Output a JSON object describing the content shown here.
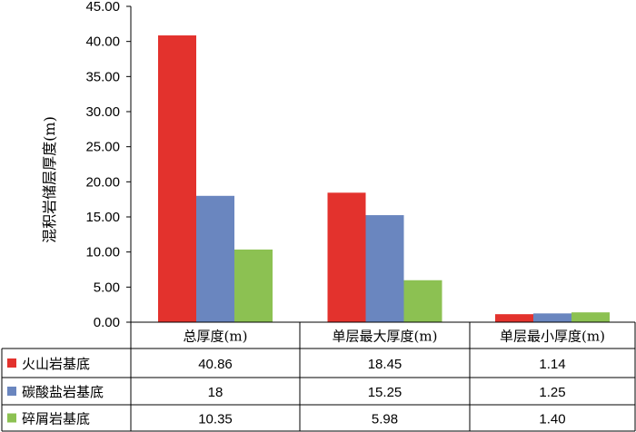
{
  "chart_data": {
    "type": "bar",
    "ylabel": "混积岩储层厚度(m)",
    "ylim": [
      0,
      45
    ],
    "yticks": [
      "0.00",
      "5.00",
      "10.00",
      "15.00",
      "20.00",
      "25.00",
      "30.00",
      "35.00",
      "40.00",
      "45.00"
    ],
    "categories": [
      "总厚度(m)",
      "单层最大厚度(m)",
      "单层最小厚度(m)"
    ],
    "series": [
      {
        "name": "火山岩基底",
        "color": "#e3322d",
        "values": [
          40.86,
          18.45,
          1.14
        ],
        "labels": [
          "40.86",
          "18.45",
          "1.14"
        ]
      },
      {
        "name": "碳酸盐岩基底",
        "color": "#6a86bf",
        "values": [
          18,
          15.25,
          1.25
        ],
        "labels": [
          "18",
          "15.25",
          "1.25"
        ]
      },
      {
        "name": "碎屑岩基底",
        "color": "#8cc152",
        "values": [
          10.35,
          5.98,
          1.4
        ],
        "labels": [
          "10.35",
          "5.98",
          "1.40"
        ]
      }
    ],
    "grid": false,
    "legend": "data-table"
  }
}
